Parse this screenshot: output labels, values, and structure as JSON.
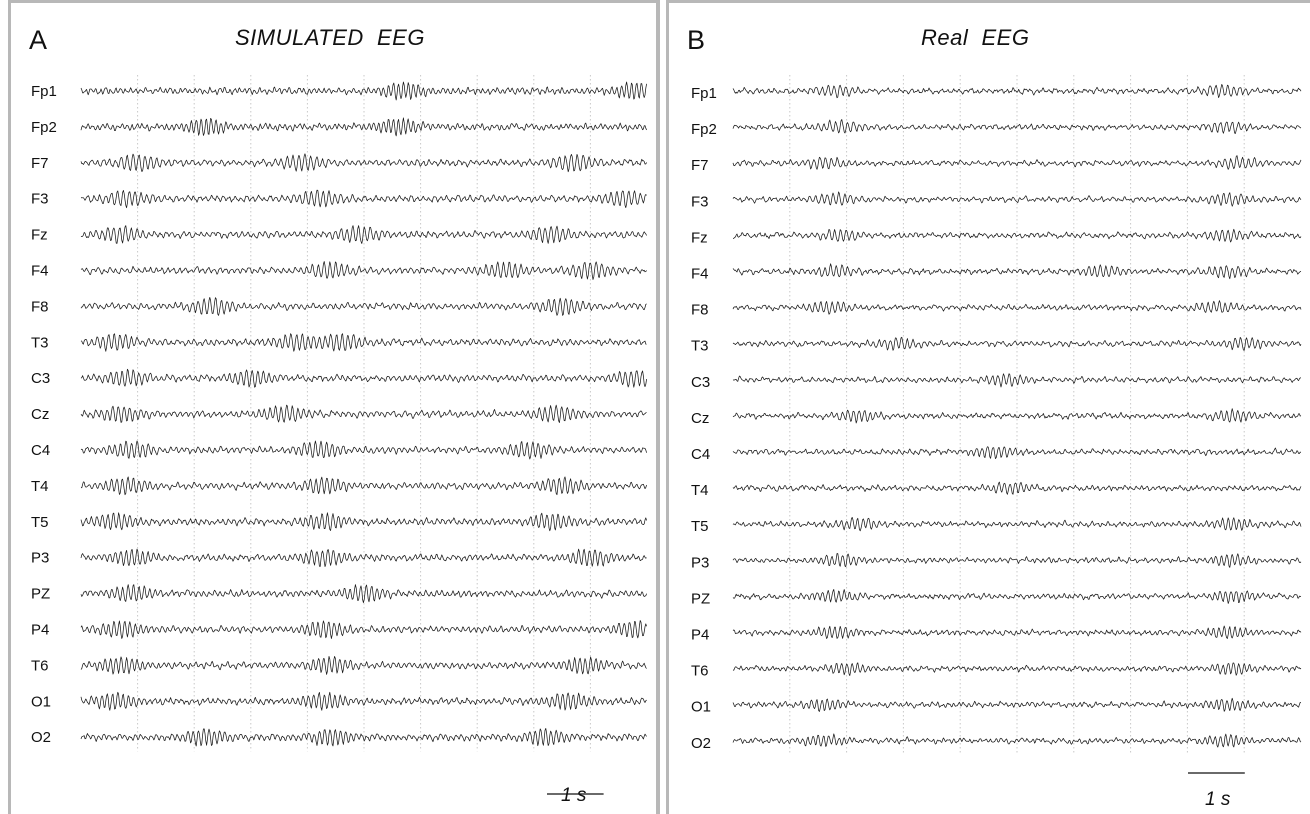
{
  "colors": {
    "trace": "#1a1a1a",
    "grid": "#c8c8c8",
    "panel_border": "#b8b8b8"
  },
  "chart_data": [
    {
      "type": "line",
      "panel_letter": "A",
      "title": "SIMULATED  EEG",
      "channels": [
        "Fp1",
        "Fp2",
        "F7",
        "F3",
        "Fz",
        "F4",
        "F8",
        "T3",
        "C3",
        "Cz",
        "C4",
        "T4",
        "T5",
        "P3",
        "PZ",
        "P4",
        "T6",
        "O1",
        "O2"
      ],
      "duration_s": 10,
      "grid": "vertical dotted, one line per second",
      "scale_bar": {
        "label": "1 s",
        "value_s": 1,
        "position": "bottom-right"
      },
      "alpha_bursts_s": {
        "Fp1": [
          5.7,
          9.8
        ],
        "Fp2": [
          2.2,
          5.6
        ],
        "F7": [
          1.0,
          3.9,
          8.7
        ],
        "F3": [
          0.8,
          4.2,
          9.6
        ],
        "Fz": [
          0.7,
          4.9,
          8.3
        ],
        "F4": [
          4.4,
          7.5,
          9.0
        ],
        "F8": [
          2.3,
          8.5
        ],
        "T3": [
          0.6,
          3.8,
          4.6
        ],
        "C3": [
          0.8,
          3.0,
          9.8
        ],
        "Cz": [
          0.7,
          3.6,
          8.4
        ],
        "C4": [
          0.9,
          4.2,
          7.9
        ],
        "T4": [
          0.8,
          4.3,
          8.5
        ],
        "T5": [
          0.6,
          4.3,
          8.3
        ],
        "P3": [
          0.9,
          4.3,
          9.0
        ],
        "PZ": [
          0.9,
          5.0
        ],
        "P4": [
          0.7,
          4.3,
          9.8
        ],
        "T6": [
          0.7,
          4.4,
          8.9
        ],
        "O1": [
          0.6,
          4.3,
          8.6
        ],
        "O2": [
          2.2,
          4.4,
          8.2
        ]
      }
    },
    {
      "type": "line",
      "panel_letter": "B",
      "title": "Real  EEG",
      "channels": [
        "Fp1",
        "Fp2",
        "F7",
        "F3",
        "Fz",
        "F4",
        "F8",
        "T3",
        "C3",
        "Cz",
        "C4",
        "T4",
        "T5",
        "P3",
        "PZ",
        "P4",
        "T6",
        "O1",
        "O2"
      ],
      "duration_s": 10,
      "grid": "vertical dotted, one line per second",
      "scale_bar": {
        "label": "1 s",
        "value_s": 1,
        "position": "bottom-right"
      },
      "alpha_bursts_s": {
        "Fp1": [
          1.8,
          8.6
        ],
        "Fp2": [
          1.9,
          8.7
        ],
        "F7": [
          1.6,
          8.9
        ],
        "F3": [
          1.8,
          8.7
        ],
        "Fz": [
          1.9,
          8.7
        ],
        "F4": [
          1.8,
          6.5,
          8.7
        ],
        "F8": [
          1.7,
          8.5
        ],
        "T3": [
          2.9,
          9.0
        ],
        "C3": [
          4.8
        ],
        "Cz": [
          2.2,
          8.8
        ],
        "C4": [
          4.6
        ],
        "T4": [
          4.9
        ],
        "T5": [
          2.2,
          8.8
        ],
        "P3": [
          1.9,
          8.8
        ],
        "PZ": [
          1.8,
          8.8
        ],
        "P4": [
          1.8,
          8.7
        ],
        "T6": [
          2.0,
          8.8
        ],
        "O1": [
          1.6,
          8.7
        ],
        "O2": [
          1.6,
          8.7
        ]
      }
    }
  ]
}
